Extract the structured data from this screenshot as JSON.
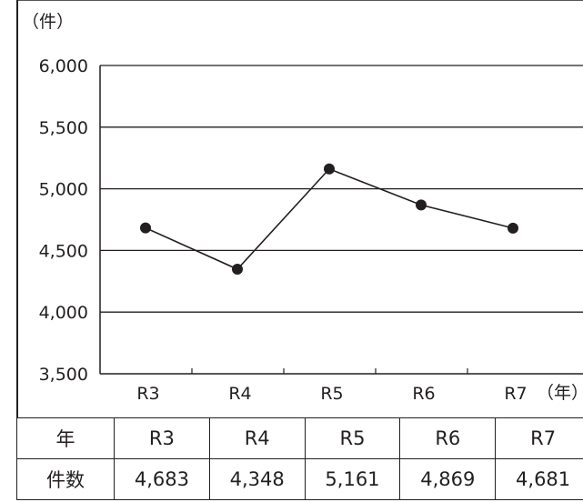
{
  "chart_data": {
    "type": "line",
    "y_unit": "（件）",
    "x_unit": "（年）",
    "categories": [
      "R3",
      "R4",
      "R5",
      "R6",
      "R7"
    ],
    "values": [
      4683,
      4348,
      5161,
      4869,
      4681
    ],
    "ylim": [
      3500,
      6000
    ],
    "y_ticks": [
      3500,
      4000,
      4500,
      5000,
      5500,
      6000
    ],
    "y_tick_labels": [
      "3,500",
      "4,000",
      "4,500",
      "5,000",
      "5,500",
      "6,000"
    ],
    "grid": true,
    "line_color": "#231f20",
    "marker_color": "#231f20"
  },
  "table": {
    "row_labels": [
      "年",
      "件数"
    ],
    "years": [
      "R3",
      "R4",
      "R5",
      "R6",
      "R7"
    ],
    "counts": [
      "4,683",
      "4,348",
      "5,161",
      "4,869",
      "4,681"
    ]
  }
}
